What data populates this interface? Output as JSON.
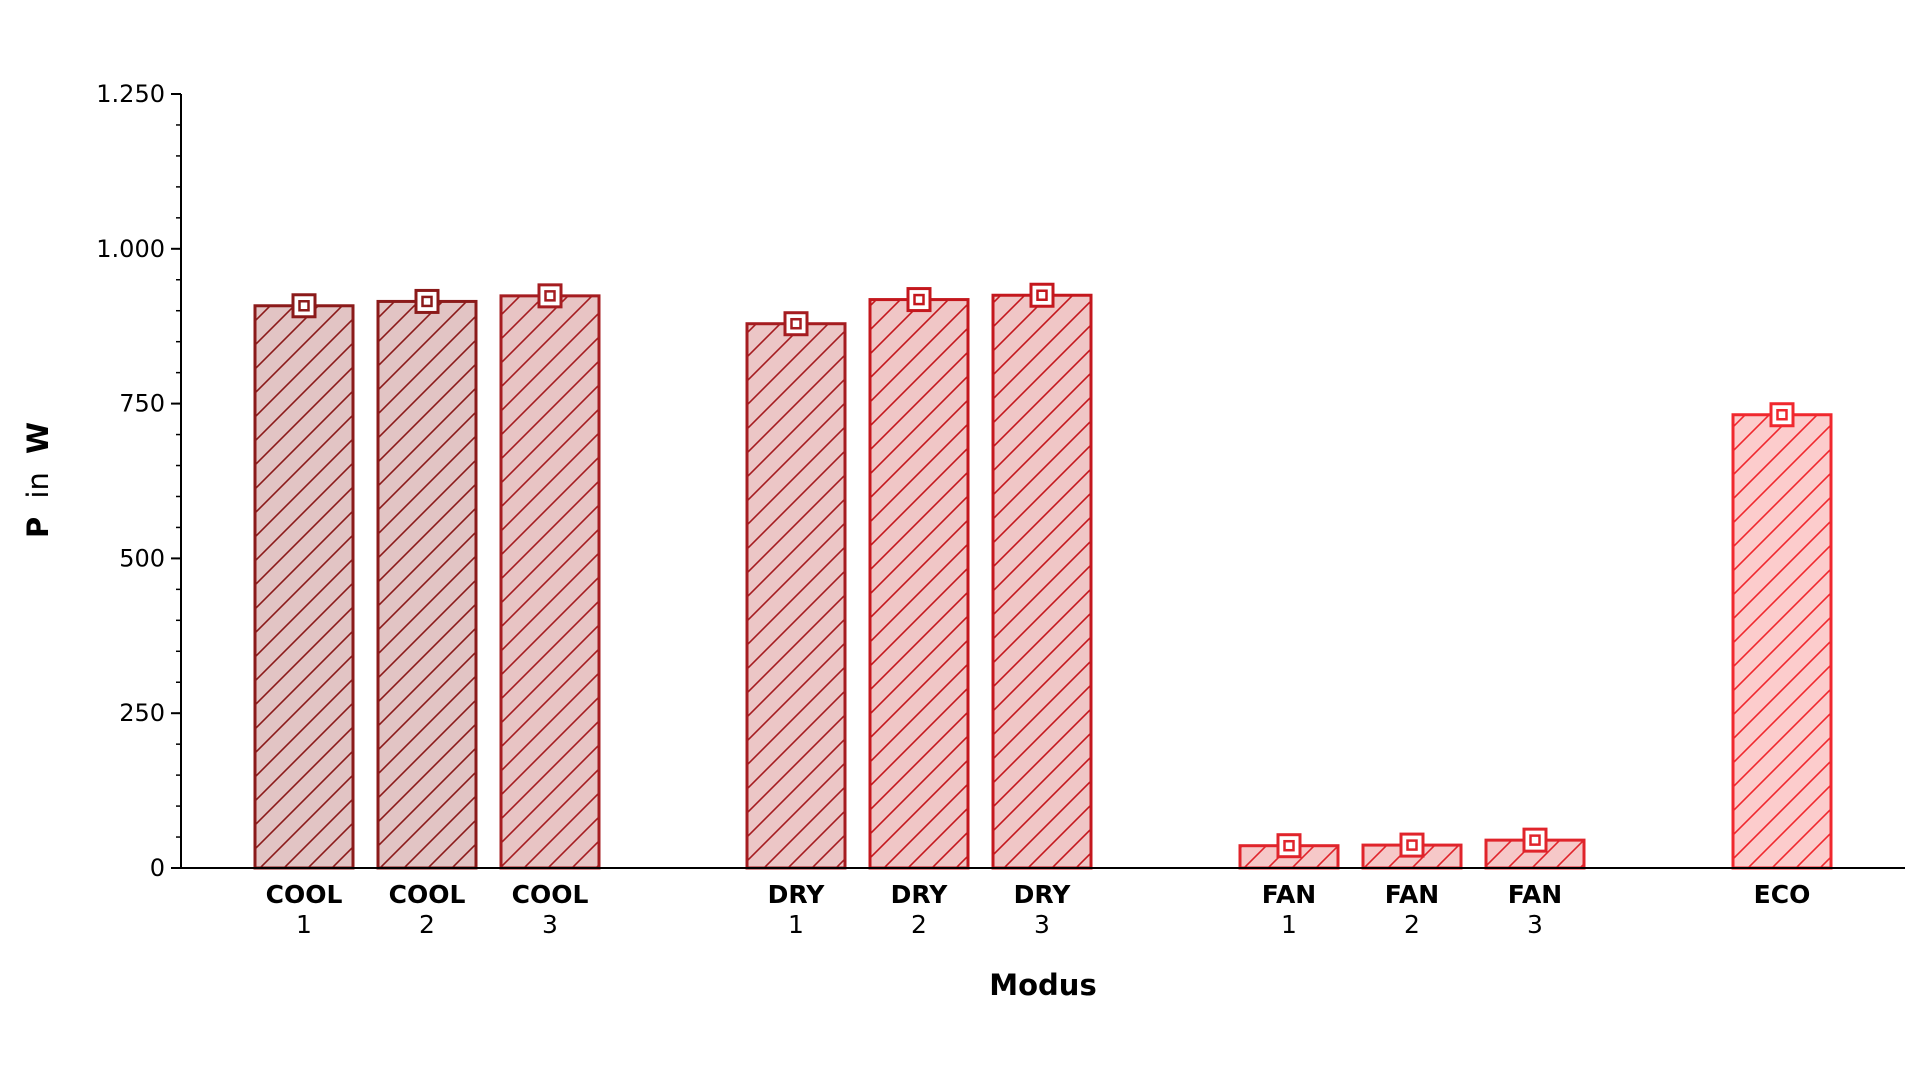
{
  "chart_data": {
    "type": "bar",
    "xlabel": "Modus",
    "ylabel": {
      "bold_1": "P",
      "regular": "in",
      "bold_2": "W"
    },
    "ylim": [
      0,
      1250
    ],
    "yticks": [
      {
        "value": 0,
        "label": "0"
      },
      {
        "value": 250,
        "label": "250"
      },
      {
        "value": 500,
        "label": "500"
      },
      {
        "value": 750,
        "label": "750"
      },
      {
        "value": 1000,
        "label": "1.000"
      },
      {
        "value": 1250,
        "label": "1.250"
      }
    ],
    "grid": false,
    "legend": "none",
    "bars": [
      {
        "mode": "COOL",
        "num": "1",
        "value": 908,
        "color": "#8b1a1a",
        "fill": "#e2c4c4"
      },
      {
        "mode": "COOL",
        "num": "2",
        "value": 915,
        "color": "#8b1a1a",
        "fill": "#e2c4c4"
      },
      {
        "mode": "COOL",
        "num": "3",
        "value": 924,
        "color": "#a51c20",
        "fill": "#e8c4c4"
      },
      {
        "mode": "DRY",
        "num": "1",
        "value": 879,
        "color": "#a51c20",
        "fill": "#ecc6c6"
      },
      {
        "mode": "DRY",
        "num": "2",
        "value": 918,
        "color": "#c4171d",
        "fill": "#f0c6c6"
      },
      {
        "mode": "DRY",
        "num": "3",
        "value": 925,
        "color": "#c4171d",
        "fill": "#f0c6c6"
      },
      {
        "mode": "FAN",
        "num": "1",
        "value": 36,
        "color": "#e0242b",
        "fill": "#f6c8c8"
      },
      {
        "mode": "FAN",
        "num": "2",
        "value": 37,
        "color": "#e0242b",
        "fill": "#f6c8c8"
      },
      {
        "mode": "FAN",
        "num": "3",
        "value": 45,
        "color": "#e0242b",
        "fill": "#f6c8c8"
      },
      {
        "mode": "ECO",
        "num": "",
        "value": 732,
        "color": "#f0282e",
        "fill": "#fccccc"
      }
    ]
  }
}
